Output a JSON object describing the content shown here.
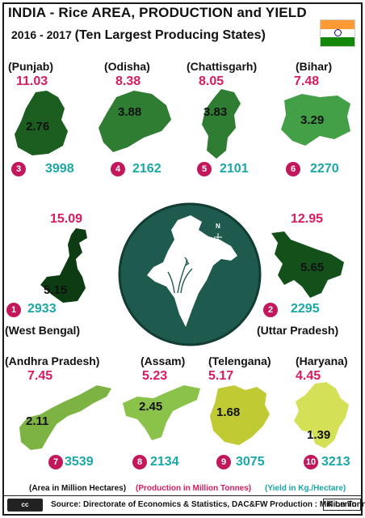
{
  "header": {
    "title": "INDIA - Rice AREA, PRODUCTION and  YIELD",
    "subtitle_years": "2016 - 2017",
    "subtitle_desc": "(Ten Largest Producing States)"
  },
  "flag": {
    "colors": [
      "#ff9933",
      "#ffffff",
      "#138808"
    ],
    "chakra_color": "#000080"
  },
  "states": [
    {
      "name": "(Punjab)",
      "production": "11.03",
      "area": "2.76",
      "rank": "3",
      "yield": "3998",
      "color": "#1b5e20"
    },
    {
      "name": "(Odisha)",
      "production": "8.38",
      "area": "3.88",
      "rank": "4",
      "yield": "2162",
      "color": "#2e7d32"
    },
    {
      "name": "(Chattisgarh)",
      "production": "8.05",
      "area": "3.83",
      "rank": "5",
      "yield": "2101",
      "color": "#2e7d32"
    },
    {
      "name": "(Bihar)",
      "production": "7.48",
      "area": "3.29",
      "rank": "6",
      "yield": "2270",
      "color": "#43a047"
    },
    {
      "name": "(West Bengal)",
      "production": "15.09",
      "area": "5.15",
      "rank": "1",
      "yield": "2933",
      "color": "#0d3b12"
    },
    {
      "name": "(Uttar  Pradesh)",
      "production": "12.95",
      "area": "5.65",
      "rank": "2",
      "yield": "2295",
      "color": "#14501a"
    },
    {
      "name": "(Andhra Pradesh)",
      "production": "7.45",
      "area": "2.11",
      "rank": "7",
      "yield": "3539",
      "color": "#7cb342"
    },
    {
      "name": "(Assam)",
      "production": "5.23",
      "area": "2.45",
      "rank": "8",
      "yield": "2134",
      "color": "#8bc34a"
    },
    {
      "name": "(Telengana)",
      "production": "5.17",
      "area": "1.68",
      "rank": "9",
      "yield": "3075",
      "color": "#c0ca33"
    },
    {
      "name": "(Haryana)",
      "production": "4.45",
      "area": "1.39",
      "rank": "10",
      "yield": "3213",
      "color": "#d4e157"
    }
  ],
  "center": {
    "compass": "N",
    "circle_color": "#1e5a4d"
  },
  "legend": {
    "area": "(Area in Million Hectares)",
    "production": "(Production in Million Tonnes)",
    "yield": "(Yield in Kg./Hectare)"
  },
  "footer": {
    "license": "cc",
    "source": "Source: Directorate of Economics & Statistics, DAC&FW  Production : Million Tonnes",
    "author": "K Lenin"
  }
}
